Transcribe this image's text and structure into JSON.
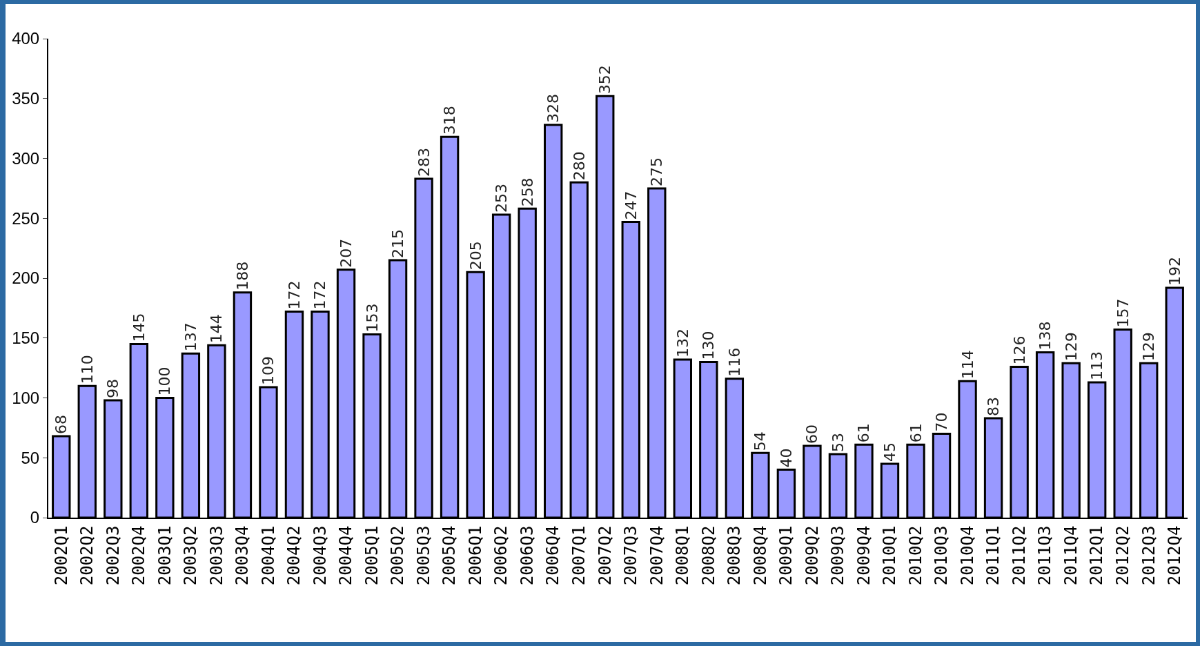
{
  "chart_data": {
    "type": "bar",
    "categories": [
      "2002Q1",
      "2002Q2",
      "2002Q3",
      "2002Q4",
      "2003Q1",
      "2003Q2",
      "2003Q3",
      "2003Q4",
      "2004Q1",
      "2004Q2",
      "2004Q3",
      "2004Q4",
      "2005Q1",
      "2005Q2",
      "2005Q3",
      "2005Q4",
      "2006Q1",
      "2006Q2",
      "2006Q3",
      "2006Q4",
      "2007Q1",
      "2007Q2",
      "2007Q3",
      "2007Q4",
      "2008Q1",
      "2008Q2",
      "2008Q3",
      "2008Q4",
      "2009Q1",
      "2009Q2",
      "2009Q3",
      "2009Q4",
      "2010Q1",
      "2010Q2",
      "2010Q3",
      "2010Q4",
      "2011Q1",
      "2011Q2",
      "2011Q3",
      "2011Q4",
      "2012Q1",
      "2012Q2",
      "2012Q3",
      "2012Q4"
    ],
    "values": [
      68,
      110,
      98,
      145,
      100,
      137,
      144,
      188,
      109,
      172,
      172,
      207,
      153,
      215,
      283,
      318,
      205,
      253,
      258,
      328,
      280,
      352,
      247,
      275,
      132,
      130,
      116,
      54,
      40,
      60,
      53,
      61,
      45,
      61,
      70,
      114,
      83,
      126,
      138,
      129,
      113,
      157,
      129,
      192
    ],
    "color": "#9999ff",
    "ylim": [
      0,
      400
    ],
    "yticks": [
      0,
      50,
      100,
      150,
      200,
      250,
      300,
      350,
      400
    ],
    "grid": false,
    "data_labels": true
  }
}
